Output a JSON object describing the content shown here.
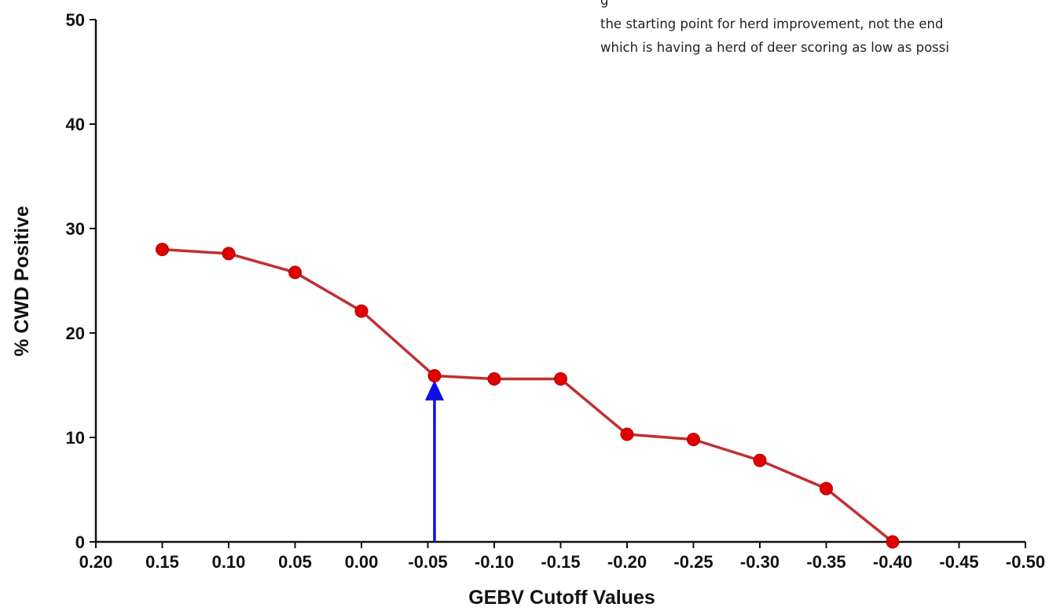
{
  "overlay_text": {
    "line1": "g",
    "line2": "the starting point for herd improvement, not the end",
    "line3": "which is having a herd of deer scoring as low as possi"
  },
  "chart_data": {
    "type": "line",
    "title": "",
    "xlabel": "GEBV Cutoff Values",
    "ylabel": "% CWD Positive",
    "xlim": [
      0.2,
      -0.5
    ],
    "ylim": [
      0,
      50
    ],
    "x_reversed": true,
    "x_ticks": [
      "0.20",
      "0.15",
      "0.10",
      "0.05",
      "0.00",
      "-0.05",
      "-0.10",
      "-0.15",
      "-0.20",
      "-0.25",
      "-0.30",
      "-0.35",
      "-0.40",
      "-0.45",
      "-0.50"
    ],
    "y_ticks": [
      "0",
      "10",
      "20",
      "30",
      "40",
      "50"
    ],
    "grid": false,
    "series": [
      {
        "color": "#e00000",
        "line_color": "#c03030",
        "x": [
          0.15,
          0.1,
          0.05,
          0.0,
          -0.055,
          -0.1,
          -0.15,
          -0.2,
          -0.25,
          -0.3,
          -0.35,
          -0.4
        ],
        "y": [
          28.0,
          27.6,
          25.8,
          22.1,
          15.9,
          15.6,
          15.6,
          10.3,
          9.8,
          7.8,
          5.1,
          0
        ]
      }
    ],
    "annotations": [
      {
        "type": "arrow",
        "color": "#1010e0",
        "x": -0.055,
        "y_from": 0,
        "y_to": 15.5
      }
    ]
  }
}
